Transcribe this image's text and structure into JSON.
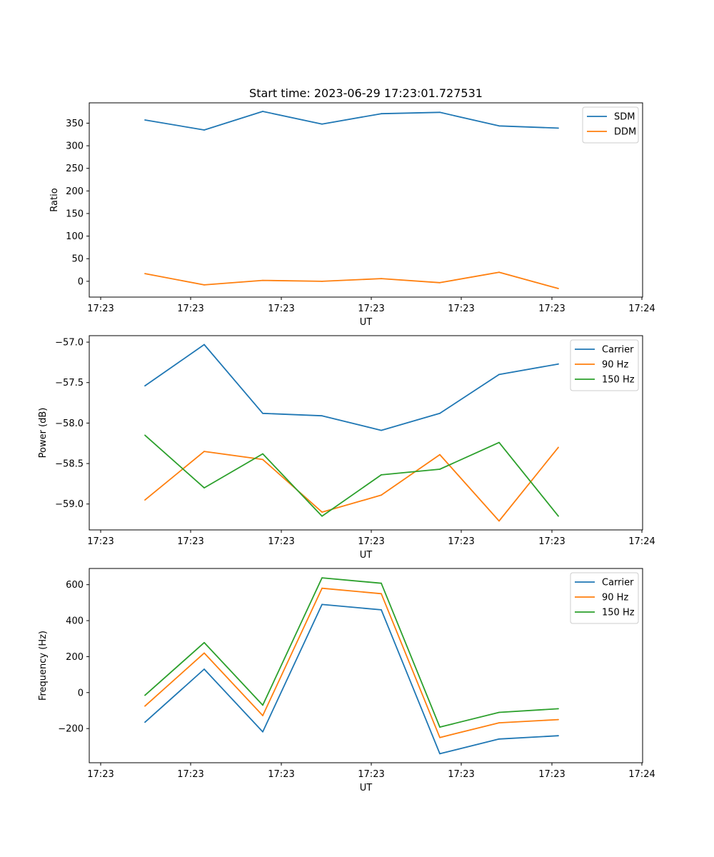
{
  "chart_data": [
    {
      "type": "line",
      "title": "Start time: 2023-06-29 17:23:01.727531",
      "xlabel": "UT",
      "ylabel": "Ratio",
      "x_tick_labels": [
        "17:23",
        "17:23",
        "17:23",
        "17:23",
        "17:23",
        "17:23",
        "17:24"
      ],
      "y_ticks": [
        0,
        50,
        100,
        150,
        200,
        250,
        300,
        350
      ],
      "ylim": [
        -35,
        395
      ],
      "grid": false,
      "legend": "top-right",
      "series": [
        {
          "name": "SDM",
          "color": "#1f77b4",
          "values": [
            357,
            335,
            376,
            348,
            371,
            374,
            344,
            339
          ]
        },
        {
          "name": "DDM",
          "color": "#ff7f0e",
          "values": [
            17,
            -8,
            2,
            0,
            6,
            -3,
            20,
            -16
          ]
        }
      ]
    },
    {
      "type": "line",
      "title": "",
      "xlabel": "UT",
      "ylabel": "Power (dB)",
      "x_tick_labels": [
        "17:23",
        "17:23",
        "17:23",
        "17:23",
        "17:23",
        "17:23",
        "17:24"
      ],
      "y_ticks": [
        -59.0,
        -58.5,
        -58.0,
        -57.5,
        -57.0
      ],
      "y_tick_labels": [
        "−59.0",
        "−58.5",
        "−58.0",
        "−57.5",
        "−57.0"
      ],
      "ylim": [
        -59.32,
        -56.92
      ],
      "grid": false,
      "legend": "top-right",
      "series": [
        {
          "name": "Carrier",
          "color": "#1f77b4",
          "values": [
            -57.54,
            -57.03,
            -57.88,
            -57.91,
            -58.09,
            -57.88,
            -57.4,
            -57.27
          ]
        },
        {
          "name": "90 Hz",
          "color": "#ff7f0e",
          "values": [
            -58.95,
            -58.35,
            -58.45,
            -59.1,
            -58.89,
            -58.39,
            -59.21,
            -58.3
          ]
        },
        {
          "name": "150 Hz",
          "color": "#2ca02c",
          "values": [
            -58.15,
            -58.8,
            -58.38,
            -59.15,
            -58.64,
            -58.57,
            -58.24,
            -59.15
          ]
        }
      ]
    },
    {
      "type": "line",
      "title": "",
      "xlabel": "UT",
      "ylabel": "Frequency (Hz)",
      "x_tick_labels": [
        "17:23",
        "17:23",
        "17:23",
        "17:23",
        "17:23",
        "17:23",
        "17:24"
      ],
      "y_ticks": [
        -200,
        0,
        200,
        400,
        600
      ],
      "y_tick_labels": [
        "−200",
        "0",
        "200",
        "400",
        "600"
      ],
      "ylim": [
        -390,
        690
      ],
      "grid": false,
      "legend": "top-right",
      "series": [
        {
          "name": "Carrier",
          "color": "#1f77b4",
          "values": [
            -165,
            130,
            -218,
            490,
            460,
            -340,
            -258,
            -240
          ]
        },
        {
          "name": "90 Hz",
          "color": "#ff7f0e",
          "values": [
            -75,
            220,
            -128,
            580,
            550,
            -250,
            -168,
            -150
          ]
        },
        {
          "name": "150 Hz",
          "color": "#2ca02c",
          "values": [
            -15,
            278,
            -70,
            638,
            608,
            -192,
            -110,
            -90
          ]
        }
      ]
    }
  ]
}
